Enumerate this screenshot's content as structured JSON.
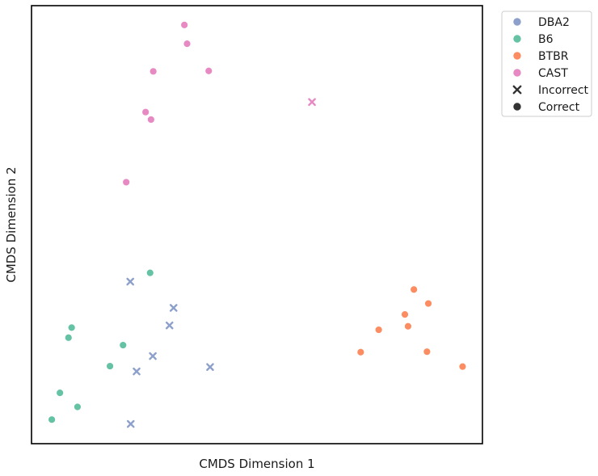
{
  "chart_data": {
    "type": "scatter",
    "xlabel": "CMDS Dimension 1",
    "ylabel": "CMDS Dimension 2",
    "xlim": [
      0,
      100
    ],
    "ylim": [
      0,
      100
    ],
    "xticks": false,
    "yticks": false,
    "grid": false,
    "legend_position": "outside top-right",
    "series": [
      {
        "name": "DBA2",
        "color": "#8da0cb",
        "points": [
          {
            "x": 21.9,
            "y": 37.0,
            "marker": "Incorrect"
          },
          {
            "x": 31.5,
            "y": 31.0,
            "marker": "Incorrect"
          },
          {
            "x": 30.6,
            "y": 27.0,
            "marker": "Incorrect"
          },
          {
            "x": 26.9,
            "y": 20.0,
            "marker": "Incorrect"
          },
          {
            "x": 23.3,
            "y": 16.5,
            "marker": "Incorrect"
          },
          {
            "x": 39.6,
            "y": 17.5,
            "marker": "Incorrect"
          },
          {
            "x": 22.0,
            "y": 4.5,
            "marker": "Incorrect"
          }
        ]
      },
      {
        "name": "B6",
        "color": "#66c2a5",
        "points": [
          {
            "x": 26.3,
            "y": 39.0,
            "marker": "Correct"
          },
          {
            "x": 8.9,
            "y": 26.5,
            "marker": "Correct"
          },
          {
            "x": 8.2,
            "y": 24.2,
            "marker": "Correct"
          },
          {
            "x": 20.3,
            "y": 22.5,
            "marker": "Correct"
          },
          {
            "x": 17.4,
            "y": 17.7,
            "marker": "Correct"
          },
          {
            "x": 6.3,
            "y": 11.6,
            "marker": "Correct"
          },
          {
            "x": 10.2,
            "y": 8.4,
            "marker": "Correct"
          },
          {
            "x": 4.5,
            "y": 5.5,
            "marker": "Correct"
          }
        ]
      },
      {
        "name": "BTBR",
        "color": "#fc8d62",
        "points": [
          {
            "x": 84.8,
            "y": 35.2,
            "marker": "Correct"
          },
          {
            "x": 88.0,
            "y": 32.0,
            "marker": "Correct"
          },
          {
            "x": 82.8,
            "y": 29.5,
            "marker": "Correct"
          },
          {
            "x": 77.0,
            "y": 26.0,
            "marker": "Correct"
          },
          {
            "x": 83.5,
            "y": 26.8,
            "marker": "Correct"
          },
          {
            "x": 73.0,
            "y": 20.9,
            "marker": "Correct"
          },
          {
            "x": 87.7,
            "y": 21.0,
            "marker": "Correct"
          },
          {
            "x": 95.6,
            "y": 17.6,
            "marker": "Correct"
          }
        ]
      },
      {
        "name": "CAST",
        "color": "#e78ac3",
        "points": [
          {
            "x": 33.9,
            "y": 95.6,
            "marker": "Correct"
          },
          {
            "x": 34.5,
            "y": 91.3,
            "marker": "Correct"
          },
          {
            "x": 27.0,
            "y": 85.0,
            "marker": "Correct"
          },
          {
            "x": 39.3,
            "y": 85.1,
            "marker": "Correct"
          },
          {
            "x": 62.2,
            "y": 78.0,
            "marker": "Incorrect"
          },
          {
            "x": 25.3,
            "y": 75.7,
            "marker": "Correct"
          },
          {
            "x": 26.5,
            "y": 74.0,
            "marker": "Correct"
          },
          {
            "x": 21.0,
            "y": 59.7,
            "marker": "Correct"
          }
        ]
      }
    ],
    "legend": [
      {
        "label": "DBA2",
        "kind": "color",
        "color": "#8da0cb"
      },
      {
        "label": "B6",
        "kind": "color",
        "color": "#66c2a5"
      },
      {
        "label": "BTBR",
        "kind": "color",
        "color": "#fc8d62"
      },
      {
        "label": "CAST",
        "kind": "color",
        "color": "#e78ac3"
      },
      {
        "label": "Incorrect",
        "kind": "marker",
        "marker": "x"
      },
      {
        "label": "Correct",
        "kind": "marker",
        "marker": "circle"
      }
    ]
  }
}
